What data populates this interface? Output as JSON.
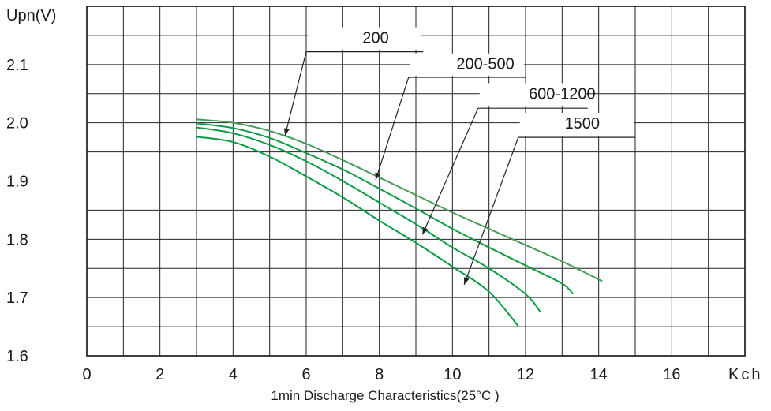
{
  "chart_data": {
    "type": "line",
    "caption": "1min Discharge Characteristics(25°C )",
    "xlabel": "Kch",
    "ylabel": "Upn(V)",
    "xlim": [
      0,
      18
    ],
    "ylim": [
      1.6,
      2.2
    ],
    "x_ticks": [
      "0",
      "2",
      "4",
      "6",
      "8",
      "10",
      "12",
      "14",
      "16"
    ],
    "y_ticks": [
      "1.6",
      "1.7",
      "1.8",
      "1.9",
      "2.0",
      "2.1"
    ],
    "grid": true,
    "colors": {
      "series_200": "#4a9a5c",
      "series_200_500": "#119a46",
      "series_600_1200": "#0b9c45",
      "series_1500": "#089a44"
    },
    "series": [
      {
        "name": "200",
        "points": [
          [
            3,
            2.006
          ],
          [
            4,
            2.0
          ],
          [
            5,
            1.986
          ],
          [
            6,
            1.964
          ],
          [
            7,
            1.936
          ],
          [
            8,
            1.906
          ],
          [
            9,
            1.876
          ],
          [
            10,
            1.846
          ],
          [
            11,
            1.818
          ],
          [
            12,
            1.79
          ],
          [
            13,
            1.762
          ],
          [
            14.1,
            1.728
          ]
        ]
      },
      {
        "name": "200-500",
        "points": [
          [
            3,
            1.999
          ],
          [
            4,
            1.991
          ],
          [
            5,
            1.974
          ],
          [
            6,
            1.948
          ],
          [
            7,
            1.92
          ],
          [
            8,
            1.887
          ],
          [
            9,
            1.853
          ],
          [
            10,
            1.818
          ],
          [
            11,
            1.786
          ],
          [
            12,
            1.755
          ],
          [
            13,
            1.724
          ],
          [
            13.3,
            1.706
          ]
        ]
      },
      {
        "name": "600-1200",
        "points": [
          [
            3,
            1.992
          ],
          [
            4,
            1.982
          ],
          [
            5,
            1.962
          ],
          [
            6,
            1.934
          ],
          [
            7,
            1.9
          ],
          [
            8,
            1.863
          ],
          [
            9,
            1.826
          ],
          [
            10,
            1.786
          ],
          [
            11,
            1.75
          ],
          [
            12,
            1.706
          ],
          [
            12.4,
            1.676
          ]
        ]
      },
      {
        "name": "1500",
        "points": [
          [
            3,
            1.976
          ],
          [
            4,
            1.967
          ],
          [
            5,
            1.942
          ],
          [
            6,
            1.908
          ],
          [
            7,
            1.872
          ],
          [
            8,
            1.832
          ],
          [
            9,
            1.794
          ],
          [
            10,
            1.753
          ],
          [
            11,
            1.71
          ],
          [
            11.8,
            1.651
          ]
        ]
      }
    ],
    "annotations": [
      {
        "label": "200",
        "text": "200"
      },
      {
        "label": "200-500",
        "text": "200-500"
      },
      {
        "label": "600-1200",
        "text": "600-1200"
      },
      {
        "label": "1500",
        "text": "1500"
      }
    ]
  }
}
